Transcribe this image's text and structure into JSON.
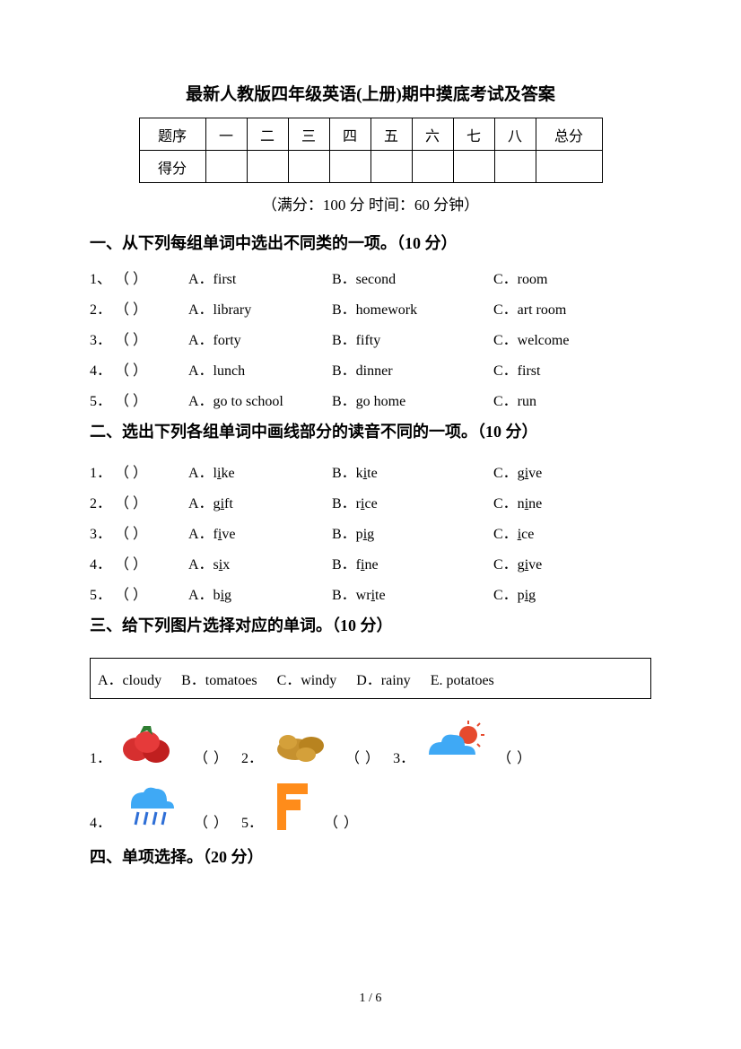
{
  "title": "最新人教版四年级英语(上册)期中摸底考试及答案",
  "scoreTable": {
    "rowLabels": [
      "题序",
      "得分"
    ],
    "cols": [
      "一",
      "二",
      "三",
      "四",
      "五",
      "六",
      "七",
      "八"
    ],
    "totalLabel": "总分"
  },
  "meta": "（满分：100 分    时间：60 分钟）",
  "sections": {
    "s1": {
      "title": "一、从下列每组单词中选出不同类的一项。（10 分）",
      "rows": [
        {
          "n": "1、",
          "a": "A．first",
          "b": "B．second",
          "c": "C．room"
        },
        {
          "n": "2．",
          "a": "A．library",
          "b": "B．homework",
          "c": "C．art room"
        },
        {
          "n": "3．",
          "a": "A．forty",
          "b": "B．fifty",
          "c": "C．welcome"
        },
        {
          "n": "4．",
          "a": "A．lunch",
          "b": "B．dinner",
          "c": "C．first"
        },
        {
          "n": "5．",
          "a": "A．go to school",
          "b": "B．go home",
          "c": "C．run"
        }
      ]
    },
    "s2": {
      "title": "二、选出下列各组单词中画线部分的读音不同的一项。（10 分）",
      "rows": [
        {
          "n": "1．",
          "a": {
            "pre": "A．l",
            "u": "i",
            "post": "ke"
          },
          "b": {
            "pre": "B．k",
            "u": "i",
            "post": "te"
          },
          "c": {
            "pre": "C．g",
            "u": "i",
            "post": "ve"
          }
        },
        {
          "n": "2．",
          "a": {
            "pre": "A．g",
            "u": "i",
            "post": "ft"
          },
          "b": {
            "pre": "B．r",
            "u": "i",
            "post": "ce"
          },
          "c": {
            "pre": "C．n",
            "u": "i",
            "post": "ne"
          }
        },
        {
          "n": "3．",
          "a": {
            "pre": "A．f",
            "u": "i",
            "post": "ve"
          },
          "b": {
            "pre": "B．p",
            "u": "i",
            "post": "g"
          },
          "c": {
            "pre": "C．",
            "u": "i",
            "post": "ce"
          }
        },
        {
          "n": "4．",
          "a": {
            "pre": "A．s",
            "u": "i",
            "post": "x"
          },
          "b": {
            "pre": "B．f",
            "u": "i",
            "post": "ne"
          },
          "c": {
            "pre": "C．g",
            "u": "i",
            "post": "ve"
          }
        },
        {
          "n": "5．",
          "a": {
            "pre": "A．b",
            "u": "i",
            "post": "g"
          },
          "b": {
            "pre": "B．wr",
            "u": "i",
            "post": "te"
          },
          "c": {
            "pre": "C．p",
            "u": "i",
            "post": "g"
          }
        }
      ]
    },
    "s3": {
      "title": "三、给下列图片选择对应的单词。（10 分）",
      "options": {
        "a": "A．cloudy",
        "b": "B．tomatoes",
        "c": "C．windy",
        "d": "D．rainy",
        "e": "E. potatoes"
      },
      "items": [
        {
          "n": "1．",
          "icon": "tomatoes"
        },
        {
          "n": "2．",
          "icon": "potatoes"
        },
        {
          "n": "3．",
          "icon": "cloudy"
        },
        {
          "n": "4．",
          "icon": "rainy"
        },
        {
          "n": "5．",
          "icon": "windy"
        }
      ]
    },
    "s4": {
      "title": "四、单项选择。（20 分）"
    }
  },
  "blankParen": "（    ）",
  "shortParen": "（     ）",
  "footer": "1 / 6",
  "colors": {
    "tomato": "#d62f2f",
    "tomatoLeaf": "#2e7d32",
    "potato": "#c6912f",
    "cloud": "#3fa9f5",
    "sun": "#e64a2e",
    "rain": "#2e6ed6",
    "flag": "#ff8c1a"
  }
}
